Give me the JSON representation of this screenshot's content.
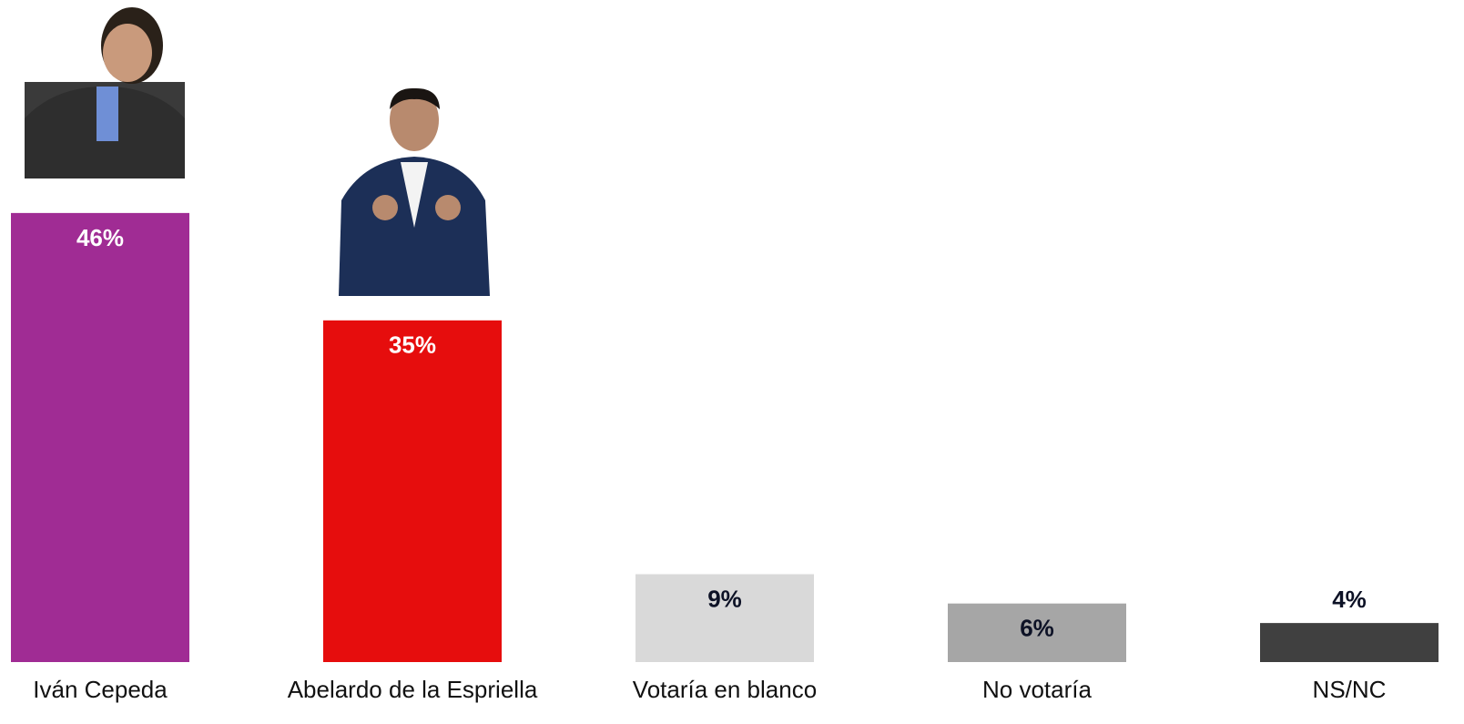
{
  "chart_data": {
    "type": "bar",
    "categories": [
      "Iván Cepeda",
      "Abelardo de la Espriella",
      "Votaría en blanco",
      "No votaría",
      "NS/NC"
    ],
    "values": [
      46,
      35,
      9,
      6,
      4
    ],
    "value_labels": [
      "46%",
      "35%",
      "9%",
      "6%",
      "4%"
    ],
    "colors": [
      "#a02c94",
      "#e60d0d",
      "#d9d9d9",
      "#a6a6a6",
      "#404040"
    ]
  }
}
